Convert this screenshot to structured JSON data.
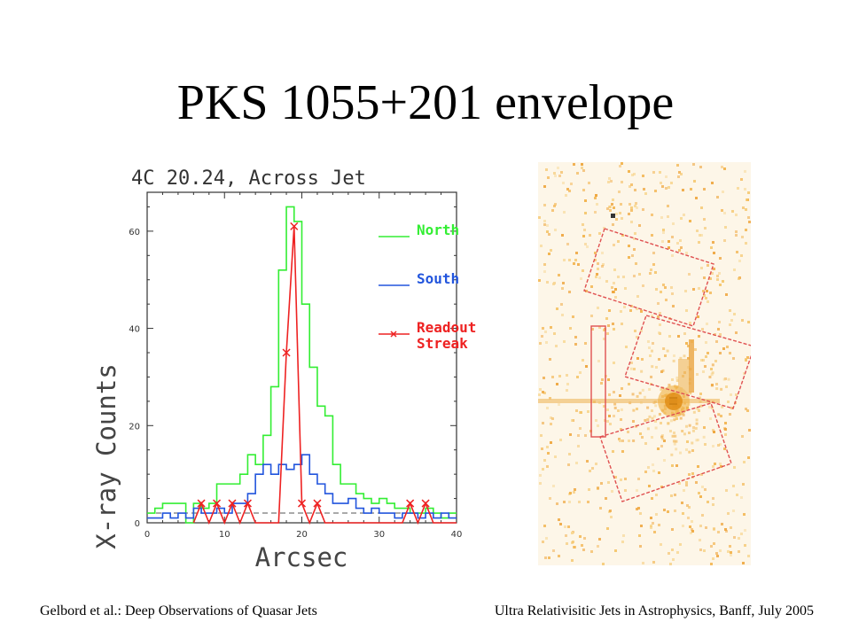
{
  "slide": {
    "title": "PKS 1055+201 envelope",
    "footer_left": "Gelbord et al.: Deep Observations of Quasar Jets",
    "footer_right": "Ultra Relativisitic Jets in Astrophysics, Banff, July 2005"
  },
  "chart_data": {
    "type": "line",
    "title": "4C 20.24, Across Jet",
    "xlabel": "Arcsec",
    "ylabel": "X-ray Counts",
    "xlim": [
      0,
      40
    ],
    "ylim": [
      0,
      68
    ],
    "xticks": [
      0,
      10,
      20,
      30,
      40
    ],
    "yticks": [
      0,
      20,
      40,
      60
    ],
    "legend_position": "top-right",
    "baseline": 2,
    "series": [
      {
        "name": "North",
        "color": "#33ee33",
        "style": "step",
        "x": [
          0,
          1,
          2,
          3,
          4,
          5,
          6,
          7,
          8,
          9,
          10,
          11,
          12,
          13,
          14,
          15,
          16,
          17,
          18,
          19,
          20,
          21,
          22,
          23,
          24,
          25,
          26,
          27,
          28,
          29,
          30,
          31,
          32,
          33,
          34,
          35,
          36,
          37,
          38,
          39,
          40
        ],
        "y": [
          2,
          3,
          4,
          4,
          4,
          0,
          4,
          3,
          4,
          8,
          8,
          8,
          10,
          14,
          12,
          18,
          28,
          52,
          65,
          62,
          45,
          32,
          24,
          22,
          12,
          8,
          8,
          6,
          5,
          4,
          5,
          4,
          3,
          3,
          2,
          2,
          3,
          2,
          1,
          2,
          0
        ]
      },
      {
        "name": "South",
        "color": "#2255dd",
        "style": "step",
        "x": [
          0,
          1,
          2,
          3,
          4,
          5,
          6,
          7,
          8,
          9,
          10,
          11,
          12,
          13,
          14,
          15,
          16,
          17,
          18,
          19,
          20,
          21,
          22,
          23,
          24,
          25,
          26,
          27,
          28,
          29,
          30,
          31,
          32,
          33,
          34,
          35,
          36,
          37,
          38,
          39,
          40
        ],
        "y": [
          1,
          1,
          2,
          1,
          2,
          1,
          3,
          2,
          2,
          3,
          2,
          4,
          4,
          6,
          10,
          12,
          10,
          12,
          11,
          12,
          14,
          10,
          8,
          6,
          4,
          4,
          5,
          3,
          2,
          3,
          2,
          2,
          1,
          2,
          2,
          1,
          2,
          1,
          2,
          1,
          0
        ]
      },
      {
        "name": "Readout Streak",
        "color": "#ee2222",
        "style": "line-x",
        "x": [
          6,
          7,
          8,
          9,
          10,
          11,
          12,
          13,
          14,
          15,
          16,
          17,
          18,
          19,
          20,
          21,
          22,
          23,
          24,
          25,
          26,
          27,
          28,
          29,
          30,
          31,
          32,
          33,
          34,
          35,
          36,
          37,
          38,
          39,
          40
        ],
        "y": [
          0,
          4,
          0,
          4,
          0,
          4,
          0,
          4,
          0,
          0,
          0,
          0,
          35,
          61,
          4,
          0,
          4,
          0,
          0,
          0,
          0,
          0,
          0,
          0,
          0,
          0,
          0,
          0,
          4,
          0,
          4,
          0,
          0,
          0,
          0
        ]
      }
    ]
  },
  "image": {
    "name": "Chandra X-ray image of 4C 20.24 with extraction regions"
  }
}
